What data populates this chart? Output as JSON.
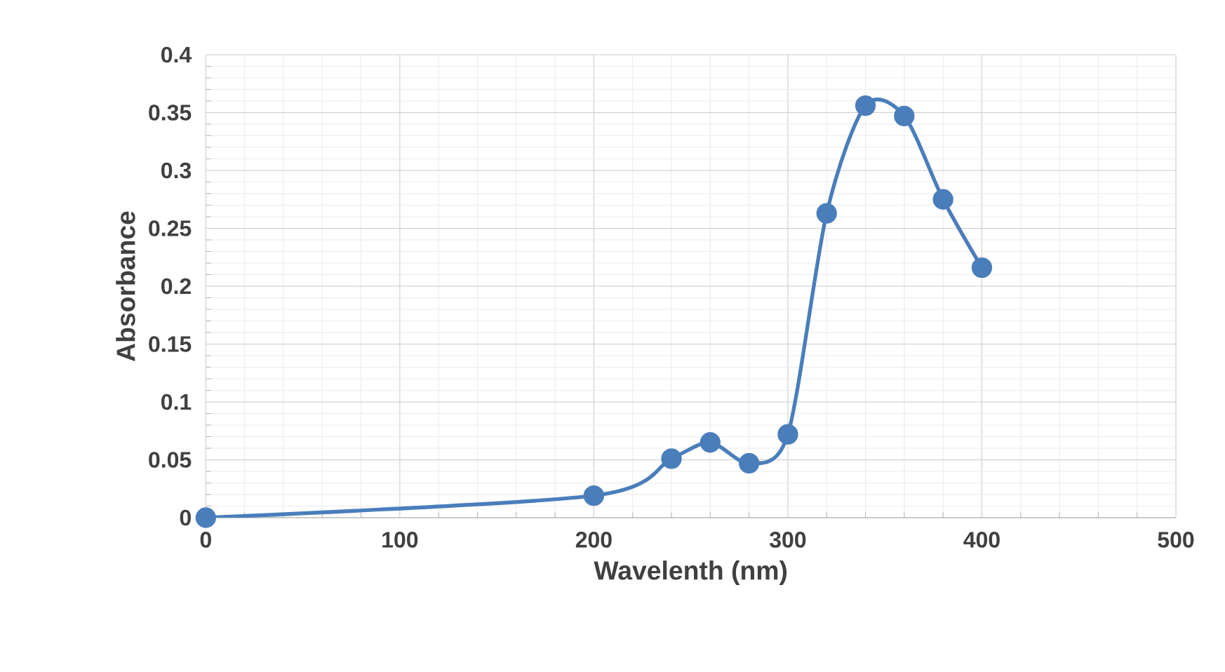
{
  "chart_data": {
    "type": "line",
    "xlabel": "Wavelenth (nm)",
    "ylabel": "Absorbance",
    "x": [
      0,
      200,
      240,
      260,
      280,
      300,
      320,
      340,
      360,
      380,
      400
    ],
    "series": [
      {
        "color": "#4a7ebb",
        "values": [
          0,
          0.019,
          0.051,
          0.065,
          0.047,
          0.072,
          0.263,
          0.356,
          0.347,
          0.275,
          0.216
        ]
      }
    ],
    "xlim": [
      0,
      500
    ],
    "xticks": [
      0,
      100,
      200,
      300,
      400,
      500
    ],
    "ylim": [
      0,
      0.4
    ],
    "yticks": [
      0,
      0.05,
      0.1,
      0.15,
      0.2,
      0.25,
      0.3,
      0.35,
      0.4
    ],
    "grid": true,
    "marker": "circle",
    "line_style": "solid"
  }
}
